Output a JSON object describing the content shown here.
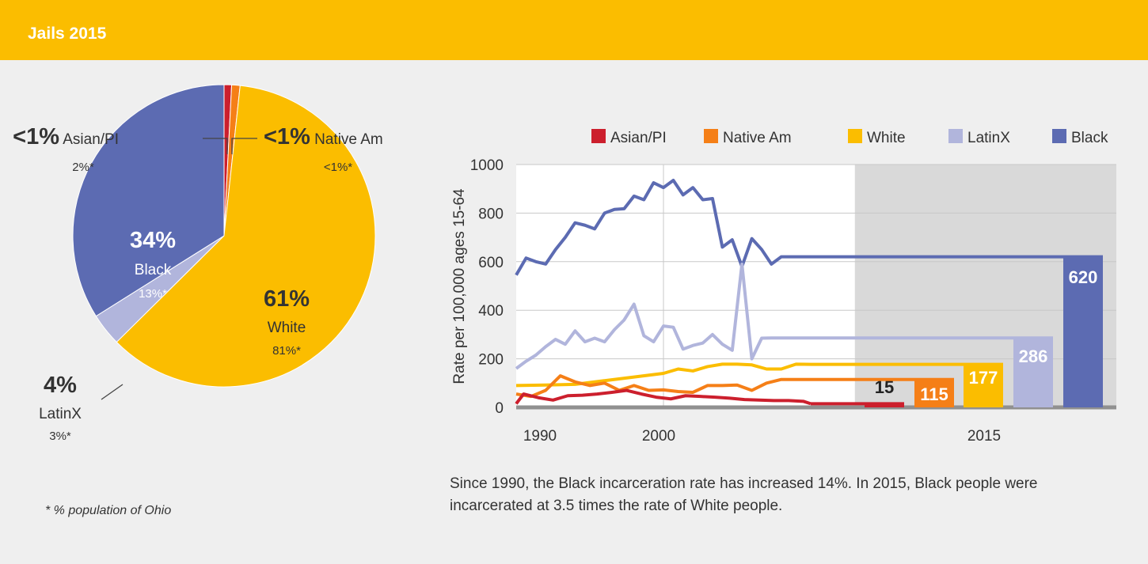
{
  "header": {
    "title": "Jails 2015"
  },
  "footnote": "* % population of Ohio",
  "caption": "Since 1990, the Black incarceration rate has increased 14%. In 2015, Black people were incarcerated at 3.5 times the rate of White people.",
  "colors": {
    "header_bg": "#fbbd00",
    "asian": "#cc1f2d",
    "native": "#f57f17",
    "white": "#fbbd00",
    "latinx": "#b1b5dc",
    "black": "#5c6bb2",
    "shade": "#d9d9d9"
  },
  "chart_data": [
    {
      "type": "pie",
      "slices": [
        {
          "key": "asian",
          "pct_label": "<1%",
          "name": "Asian/PI",
          "population": "2%*",
          "value": 0.8
        },
        {
          "key": "native",
          "pct_label": "<1%",
          "name": "Native Am",
          "population": "<1%*",
          "value": 0.9
        },
        {
          "key": "white",
          "pct_label": "61%",
          "name": "White",
          "population": "81%*",
          "value": 61
        },
        {
          "key": "latinx",
          "pct_label": "4%",
          "name": "LatinX",
          "population": "3%*",
          "value": 3.5
        },
        {
          "key": "black",
          "pct_label": "34%",
          "name": "Black",
          "population": "13%*",
          "value": 34
        }
      ]
    },
    {
      "type": "line",
      "ylabel": "Rate per 100,000 ages 15-64",
      "ylim": [
        0,
        1000
      ],
      "yticks": [
        0,
        200,
        400,
        600,
        800,
        1000
      ],
      "xlim": [
        1990,
        2015
      ],
      "xticks": [
        1990,
        2000,
        2015
      ],
      "legend": [
        "Asian/PI",
        "Native Am",
        "White",
        "LatinX",
        "Black"
      ],
      "legend_position": "top",
      "series": [
        {
          "name": "Black",
          "key": "black",
          "x": [
            1990,
            1990.67,
            1991.33,
            1992,
            1992.67,
            1993.33,
            1994,
            1994.67,
            1995.33,
            1996,
            1996.67,
            1997.33,
            1998,
            1998.67,
            1999.33,
            2000,
            2000.67,
            2001.33,
            2002,
            2002.67,
            2003.33,
            2004,
            2004.67,
            2005.33,
            2006,
            2006.67,
            2007.33,
            2008,
            2008.67,
            2009.33,
            2010
          ],
          "y": [
            545,
            615,
            600,
            590,
            650,
            700,
            760,
            750,
            735,
            800,
            815,
            818,
            870,
            855,
            925,
            905,
            935,
            875,
            905,
            855,
            860,
            660,
            690,
            580,
            695,
            650,
            590,
            620,
            620,
            620,
            620
          ]
        },
        {
          "name": "LatinX",
          "key": "latinx",
          "x": [
            1990,
            1990.67,
            1991.33,
            1992,
            1992.67,
            1993.33,
            1994,
            1994.67,
            1995.33,
            1996,
            1996.67,
            1997.33,
            1998,
            1998.67,
            1999.33,
            2000,
            2000.67,
            2001.33,
            2002,
            2002.67,
            2003.33,
            2004,
            2004.67,
            2005.33,
            2006,
            2006.67,
            2007.33,
            2008,
            2008.67,
            2009.33,
            2010
          ],
          "y": [
            160,
            190,
            215,
            250,
            280,
            260,
            315,
            270,
            285,
            270,
            320,
            360,
            425,
            295,
            270,
            335,
            330,
            240,
            255,
            265,
            300,
            260,
            235,
            590,
            200,
            285,
            286,
            286,
            286,
            286,
            286
          ]
        },
        {
          "name": "White",
          "key": "white",
          "x": [
            1990,
            1992,
            1994,
            1996,
            1998,
            2000,
            2001,
            2002,
            2003,
            2004,
            2005,
            2006,
            2007,
            2008,
            2009,
            2010
          ],
          "y": [
            90,
            92,
            95,
            110,
            125,
            140,
            158,
            150,
            168,
            178,
            178,
            175,
            158,
            158,
            178,
            177
          ]
        },
        {
          "name": "Native Am",
          "key": "native",
          "x": [
            1990,
            1991,
            1992,
            1993,
            1994,
            1995,
            1996,
            1997,
            1998,
            1999,
            2000,
            2001,
            2002,
            2003,
            2004,
            2005,
            2006,
            2007,
            2008,
            2009,
            2010
          ],
          "y": [
            55,
            45,
            70,
            130,
            105,
            90,
            100,
            70,
            90,
            70,
            72,
            65,
            62,
            90,
            90,
            92,
            70,
            100,
            115,
            115,
            115
          ]
        },
        {
          "name": "Asian/PI",
          "key": "asian",
          "x": [
            1990,
            1990.5,
            1991.5,
            1992.5,
            1993.5,
            1994.5,
            1995.5,
            1996.5,
            1997.5,
            1998.5,
            1999.5,
            2000.5,
            2001.5,
            2002.5,
            2003.5,
            2004.5,
            2005.5,
            2006.5,
            2007.5,
            2008.5,
            2009.5,
            2010
          ],
          "y": [
            15,
            55,
            40,
            30,
            48,
            50,
            55,
            62,
            70,
            55,
            42,
            35,
            48,
            45,
            42,
            38,
            32,
            30,
            28,
            28,
            25,
            15
          ]
        }
      ],
      "bars": [
        {
          "key": "asian",
          "value": 15,
          "label": "15"
        },
        {
          "key": "native",
          "value": 115,
          "label": "115"
        },
        {
          "key": "white",
          "value": 177,
          "label": "177"
        },
        {
          "key": "latinx",
          "value": 286,
          "label": "286"
        },
        {
          "key": "black",
          "value": 620,
          "label": "620"
        }
      ]
    }
  ]
}
